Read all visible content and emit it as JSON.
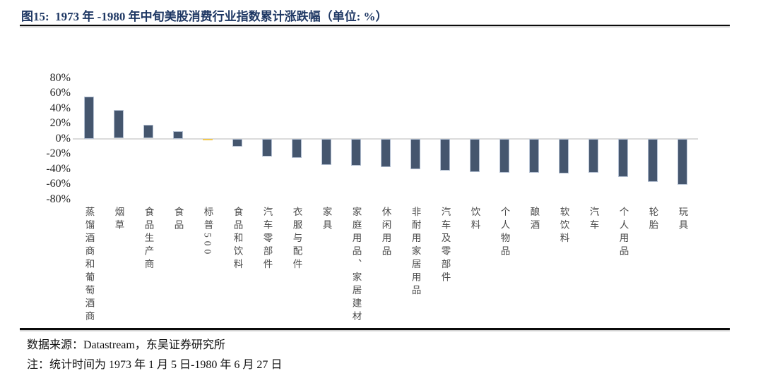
{
  "header": {
    "title": "图15:  1973 年 -1980 年中旬美股消费行业指数累计涨跌幅（单位: %）"
  },
  "chart_data": {
    "type": "bar",
    "title": "1973 年 -1980 年中旬美股消费行业指数累计涨跌幅",
    "unit": "%",
    "categories": [
      "蒸馏酒商和葡萄酒商",
      "烟草",
      "食品生产商",
      "食品",
      "标普500",
      "食品和饮料",
      "汽车零部件",
      "衣服与配件",
      "家具",
      "家庭用品、家居建材",
      "休闲用品",
      "非耐用家居用品",
      "汽车及零部件",
      "饮料",
      "个人物品",
      "酿酒",
      "软饮料",
      "汽车",
      "个人用品",
      "轮胎",
      "玩具"
    ],
    "values": [
      55,
      38,
      18,
      10,
      -2,
      -11,
      -24,
      -26,
      -35,
      -36,
      -38,
      -40,
      -42,
      -44,
      -45,
      -45,
      -46,
      -45,
      -51,
      -57,
      -61
    ],
    "highlight_index": 4,
    "highlight_category": "标普500",
    "xlabel": "",
    "ylabel": "",
    "ylim": [
      -80,
      80
    ],
    "ytick_values": [
      80,
      60,
      40,
      20,
      0,
      -20,
      -40,
      -60,
      -80
    ],
    "ytick_labels": [
      "80%",
      "60%",
      "40%",
      "20%",
      "0%",
      "-20%",
      "-40%",
      "-60%",
      "-80%"
    ],
    "grid": false,
    "legend": "none",
    "colors": {
      "bar": "#45566E",
      "bar_border": "#B5C1D3",
      "highlight": "#FBD35F",
      "zero_line": "#DBDBDB",
      "title": "#1F3864"
    }
  },
  "footer": {
    "source": "数据来源：Datastream，东吴证券研究所",
    "note": "注：统计时间为 1973 年 1 月 5 日-1980 年 6 月 27 日"
  }
}
